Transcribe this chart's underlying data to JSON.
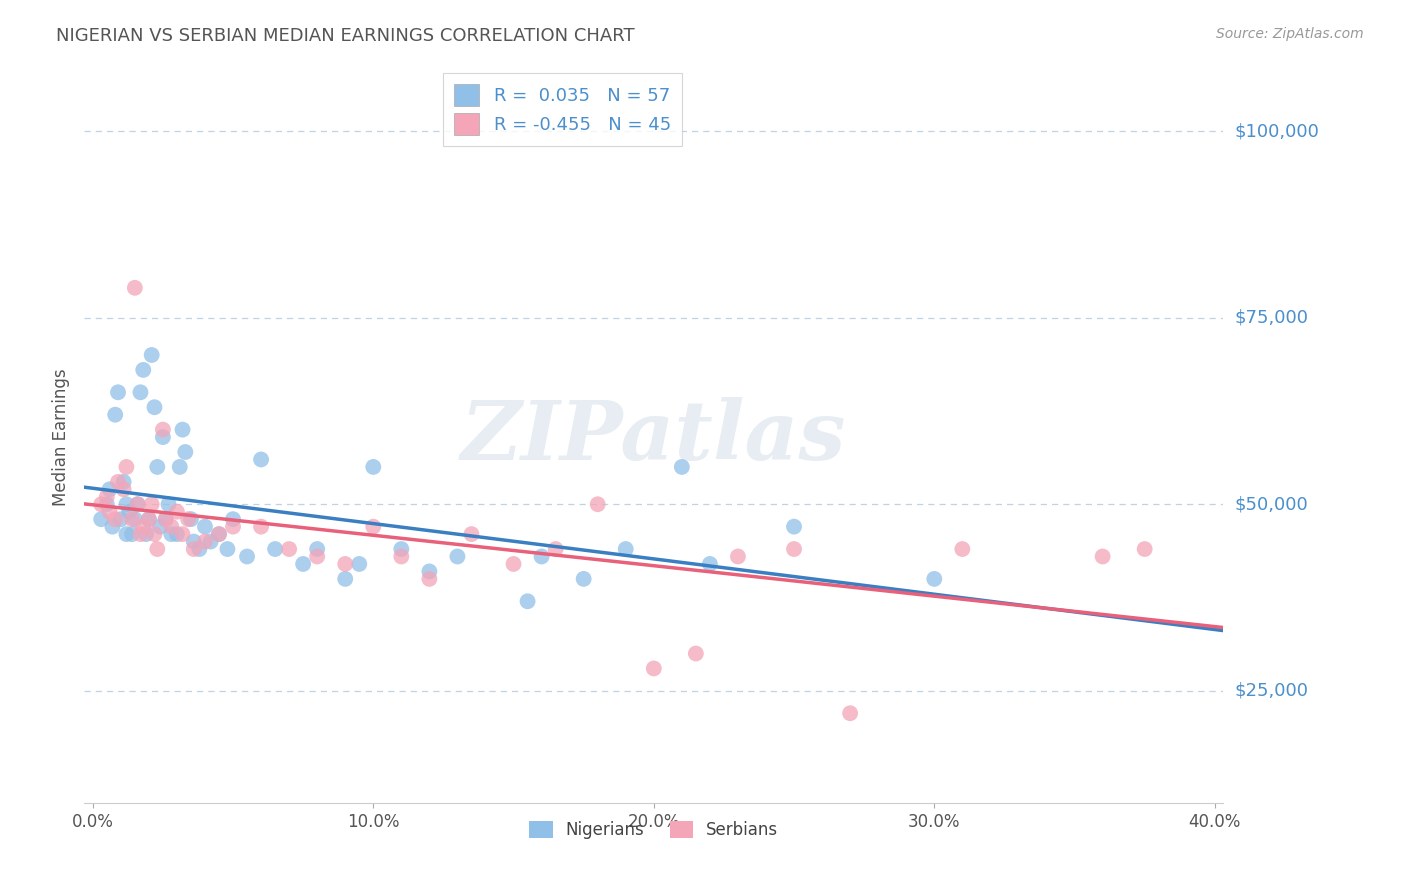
{
  "title": "NIGERIAN VS SERBIAN MEDIAN EARNINGS CORRELATION CHART",
  "source": "Source: ZipAtlas.com",
  "ylabel": "Median Earnings",
  "xlim": [
    -0.003,
    0.403
  ],
  "ylim": [
    10000,
    108000
  ],
  "yticks": [
    25000,
    50000,
    75000,
    100000
  ],
  "ytick_labels": [
    "$25,000",
    "$50,000",
    "$75,000",
    "$100,000"
  ],
  "xtick_labels": [
    "0.0%",
    "10.0%",
    "20.0%",
    "30.0%",
    "40.0%"
  ],
  "xticks": [
    0.0,
    0.1,
    0.2,
    0.3,
    0.4
  ],
  "nigerian_color": "#90bfe8",
  "serbian_color": "#f4a5b8",
  "nigerian_line_color": "#3a7fc1",
  "serbian_line_color": "#e8607a",
  "r_nigerian": "0.035",
  "n_nigerian": 57,
  "r_serbian": "-0.455",
  "n_serbian": 45,
  "watermark": "ZIPatlas",
  "title_color": "#555555",
  "axis_label_color": "#4b8fcc",
  "grid_color": "#b0c8de",
  "nigerian_x": [
    0.003,
    0.005,
    0.006,
    0.007,
    0.008,
    0.009,
    0.01,
    0.011,
    0.012,
    0.012,
    0.013,
    0.014,
    0.015,
    0.016,
    0.017,
    0.018,
    0.019,
    0.02,
    0.021,
    0.022,
    0.023,
    0.024,
    0.025,
    0.026,
    0.027,
    0.028,
    0.03,
    0.031,
    0.032,
    0.033,
    0.035,
    0.036,
    0.038,
    0.04,
    0.042,
    0.045,
    0.048,
    0.05,
    0.055,
    0.06,
    0.065,
    0.075,
    0.08,
    0.09,
    0.095,
    0.1,
    0.11,
    0.12,
    0.13,
    0.16,
    0.175,
    0.19,
    0.22,
    0.25,
    0.155,
    0.3,
    0.21
  ],
  "nigerian_y": [
    48000,
    50000,
    52000,
    47000,
    62000,
    65000,
    48000,
    53000,
    50000,
    46000,
    49000,
    46000,
    48000,
    50000,
    65000,
    68000,
    46000,
    48000,
    70000,
    63000,
    55000,
    47000,
    59000,
    48000,
    50000,
    46000,
    46000,
    55000,
    60000,
    57000,
    48000,
    45000,
    44000,
    47000,
    45000,
    46000,
    44000,
    48000,
    43000,
    56000,
    44000,
    42000,
    44000,
    40000,
    42000,
    55000,
    44000,
    41000,
    43000,
    43000,
    40000,
    44000,
    42000,
    47000,
    37000,
    40000,
    55000
  ],
  "serbian_x": [
    0.003,
    0.005,
    0.006,
    0.008,
    0.009,
    0.011,
    0.012,
    0.014,
    0.015,
    0.016,
    0.017,
    0.018,
    0.02,
    0.021,
    0.022,
    0.023,
    0.025,
    0.026,
    0.028,
    0.03,
    0.032,
    0.034,
    0.036,
    0.04,
    0.045,
    0.05,
    0.06,
    0.07,
    0.08,
    0.09,
    0.1,
    0.11,
    0.12,
    0.135,
    0.15,
    0.165,
    0.18,
    0.2,
    0.215,
    0.23,
    0.25,
    0.27,
    0.31,
    0.36,
    0.375
  ],
  "serbian_y": [
    50000,
    51000,
    49000,
    48000,
    53000,
    52000,
    55000,
    48000,
    79000,
    50000,
    46000,
    47000,
    48000,
    50000,
    46000,
    44000,
    60000,
    48000,
    47000,
    49000,
    46000,
    48000,
    44000,
    45000,
    46000,
    47000,
    47000,
    44000,
    43000,
    42000,
    47000,
    43000,
    40000,
    46000,
    42000,
    44000,
    50000,
    28000,
    30000,
    43000,
    44000,
    22000,
    44000,
    43000,
    44000
  ]
}
